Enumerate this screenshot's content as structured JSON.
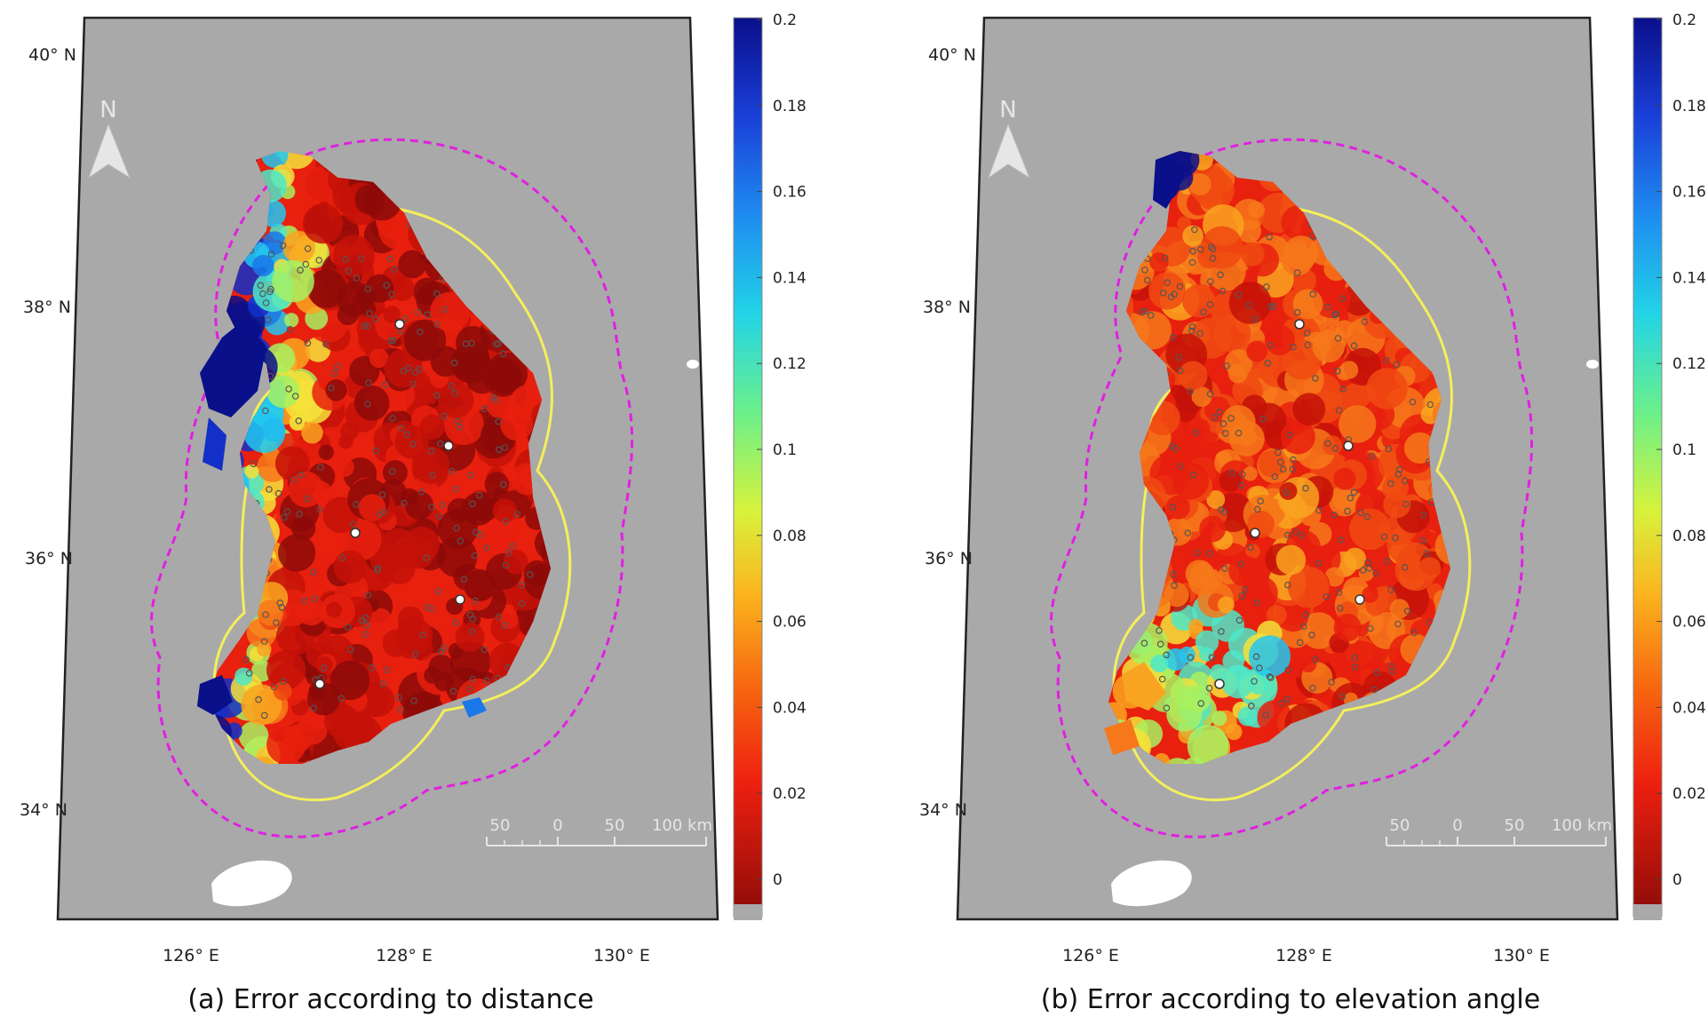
{
  "colors": {
    "sea": "#a9a9a9",
    "outer_ring": "#e020e0",
    "inner_ring": "#f4ef5a",
    "land_white": "#ffffff"
  },
  "colorbar": {
    "ticks": [
      "0.2",
      "0.18",
      "0.16",
      "0.14",
      "0.12",
      "0.1",
      "0.08",
      "0.06",
      "0.04",
      "0.02",
      "0"
    ],
    "stops": [
      "#0a0f8a",
      "#1a3fd8",
      "#1e8cf0",
      "#22d4e6",
      "#6cf08a",
      "#d8f23a",
      "#fbb51e",
      "#f76a10",
      "#ee2010",
      "#8c0b08"
    ]
  },
  "axes": {
    "lat_labels": [
      "40° N",
      "38° N",
      "36° N",
      "34° N"
    ],
    "lon_labels": [
      "126° E",
      "128° E",
      "130° E"
    ]
  },
  "scale_bar": {
    "labels": [
      "50",
      "0",
      "50",
      "100 km"
    ]
  },
  "north_arrow": {
    "label": "N"
  },
  "panels": [
    {
      "caption": "(a) Error according to distance",
      "palette": [
        "#8c0b08",
        "#c41208",
        "#e8200e",
        "#f04a12",
        "#f6781a",
        "#f9a420",
        "#f4e23a",
        "#a8f060",
        "#4ee8c8",
        "#22c8f0",
        "#1a78e8",
        "#1230c8",
        "#0a0f8a"
      ]
    },
    {
      "caption": "(b) Error according to elevation angle",
      "palette": [
        "#8c0b08",
        "#c41208",
        "#e8200e",
        "#f04a12",
        "#f6781a",
        "#f9a420",
        "#f4e23a",
        "#a8f060",
        "#4ee8c8",
        "#22c8f0",
        "#1a78e8",
        "#1230c8",
        "#0a0f8a"
      ]
    }
  ]
}
